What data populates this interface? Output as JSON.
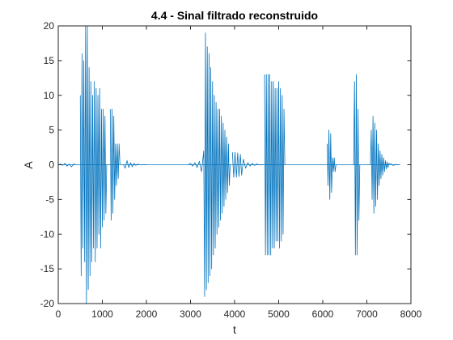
{
  "chart_data": {
    "type": "line",
    "title": "4.4 - Sinal filtrado reconstruido",
    "xlabel": "t",
    "ylabel": "A",
    "xlim": [
      0,
      8000
    ],
    "ylim": [
      -20,
      20
    ],
    "xticks": [
      0,
      1000,
      2000,
      3000,
      4000,
      5000,
      6000,
      7000,
      8000
    ],
    "yticks": [
      -20,
      -15,
      -10,
      -5,
      0,
      5,
      10,
      15,
      20
    ],
    "xtick_labels": [
      "0",
      "1000",
      "2000",
      "3000",
      "4000",
      "5000",
      "6000",
      "7000",
      "8000"
    ],
    "ytick_labels": [
      "-20",
      "-15",
      "-10",
      "-5",
      "0",
      "5",
      "10",
      "15",
      "20"
    ],
    "grid": false,
    "line_color": "#0072BD",
    "x_start": 0,
    "x_end": 7750,
    "series": [
      {
        "segments": [
          {
            "x": [
              0,
              60,
              100,
              150,
              200,
              250,
              300,
              350,
              400
            ],
            "y": [
              0,
              0.1,
              -0.1,
              0.2,
              -0.2,
              0.1,
              -0.3,
              0.1,
              0
            ]
          },
          {
            "x": [
              500,
              520,
              540,
              560,
              580,
              600,
              620,
              640,
              660,
              680,
              700,
              720,
              740,
              760,
              780,
              800,
              820,
              840,
              860,
              880,
              900,
              920,
              940,
              960,
              980,
              1000,
              1020,
              1040,
              1060,
              1080,
              1100
            ],
            "y": [
              10,
              -16,
              16,
              -12,
              15,
              -14,
              20,
              -20,
              20,
              -18,
              14,
              -16,
              12,
              -14,
              10,
              -12,
              12,
              -14,
              11,
              -12,
              10,
              -10,
              11,
              -12,
              8,
              -9,
              8,
              -8,
              7,
              -7,
              0
            ]
          },
          {
            "x": [
              1180,
              1200,
              1220,
              1240,
              1260,
              1280,
              1300,
              1320,
              1340,
              1360,
              1380,
              1400
            ],
            "y": [
              8,
              -8,
              8,
              -7,
              7,
              -5,
              3,
              -3,
              3,
              -2,
              3,
              0
            ]
          },
          {
            "x": [
              1480,
              1520,
              1560,
              1600,
              1640,
              1680,
              1720,
              1760,
              1800,
              1850,
              1900,
              1950,
              2000
            ],
            "y": [
              0,
              -0.5,
              0.6,
              -0.4,
              0.3,
              -0.3,
              0.2,
              -0.1,
              0.1,
              0,
              0,
              0,
              0
            ]
          },
          {
            "x": [
              2950,
              3000,
              3050,
              3100,
              3150,
              3200,
              3250,
              3300,
              3320,
              3340,
              3360,
              3380,
              3400,
              3420,
              3440,
              3460,
              3480,
              3500,
              3520,
              3540,
              3560,
              3580,
              3600,
              3620,
              3640,
              3660,
              3680,
              3700,
              3720,
              3740,
              3760,
              3780,
              3800,
              3820,
              3840,
              3860,
              3880,
              3900
            ],
            "y": [
              0,
              0.2,
              -0.2,
              0.3,
              -0.4,
              0.5,
              -1,
              2,
              -19,
              19,
              -18,
              17,
              -17,
              16,
              -16,
              14,
              -15,
              12,
              -13,
              10,
              -12,
              9,
              -10,
              8,
              -9,
              8,
              -8,
              7,
              -7,
              6,
              -6,
              5,
              -5,
              4,
              -4,
              3,
              -3,
              0
            ]
          },
          {
            "x": [
              3950,
              3980,
              4010,
              4040,
              4070,
              4100,
              4130,
              4160,
              4200,
              4250,
              4300,
              4350,
              4400,
              4450,
              4500,
              4550,
              4600,
              4650
            ],
            "y": [
              1.8,
              -1.8,
              1.8,
              -1.8,
              1.7,
              -1.7,
              1.5,
              -1.5,
              0.8,
              -0.5,
              0.3,
              -0.2,
              0.2,
              -0.1,
              0.1,
              0,
              0,
              0
            ]
          },
          {
            "x": [
              4680,
              4700,
              4720,
              4740,
              4760,
              4780,
              4800,
              4820,
              4840,
              4860,
              4880,
              4900,
              4920,
              4940,
              4960,
              4980,
              5000,
              5020,
              5040,
              5060,
              5080,
              5100,
              5120,
              5140
            ],
            "y": [
              13,
              -13,
              13,
              -13,
              13,
              -13,
              13,
              -13,
              12,
              -12,
              12,
              -12,
              11,
              -11,
              11,
              -11,
              12,
              -12,
              11,
              -11,
              10,
              -10,
              8,
              0
            ]
          },
          {
            "x": [
              6100,
              6120,
              6140,
              6160,
              6180,
              6200,
              6220,
              6240,
              6260,
              6280,
              6300
            ],
            "y": [
              3,
              -3,
              5,
              -5,
              4.5,
              -4,
              1,
              -1,
              1,
              -1,
              0
            ]
          },
          {
            "x": [
              6700,
              6720,
              6740,
              6760,
              6780,
              6800,
              6820,
              6840
            ],
            "y": [
              0,
              12,
              -13,
              13,
              -13,
              8,
              -8,
              0
            ]
          },
          {
            "x": [
              7080,
              7100,
              7120,
              7140,
              7160,
              7180,
              7200,
              7220,
              7240,
              7260,
              7280,
              7300,
              7320,
              7340,
              7360,
              7380,
              7400,
              7420,
              7440,
              7460,
              7480,
              7500,
              7550,
              7600,
              7650,
              7700,
              7750
            ],
            "y": [
              0,
              5,
              -5,
              7,
              -7,
              6,
              -6,
              5,
              -5,
              3,
              -3,
              2,
              -2,
              1.5,
              -1.5,
              1,
              -1,
              0.6,
              -0.6,
              0.4,
              -0.4,
              0.2,
              0.1,
              -0.1,
              0.05,
              0,
              0
            ]
          }
        ]
      }
    ]
  }
}
